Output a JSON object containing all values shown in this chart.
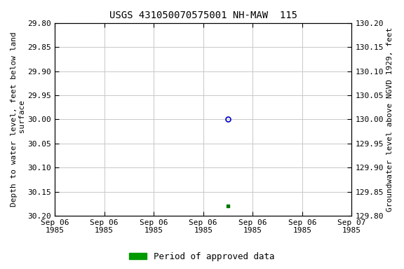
{
  "title": "USGS 431050070575001 NH-MAW  115",
  "ylabel_left": "Depth to water level, feet below land\n surface",
  "ylabel_right": "Groundwater level above NGVD 1929, feet",
  "ylim_left": [
    29.8,
    30.2
  ],
  "ylim_right_top": 130.2,
  "ylim_right_bottom": 129.8,
  "yticks_left": [
    29.8,
    29.85,
    29.9,
    29.95,
    30.0,
    30.05,
    30.1,
    30.15,
    30.2
  ],
  "yticks_right": [
    130.2,
    130.15,
    130.1,
    130.05,
    130.0,
    129.95,
    129.9,
    129.85,
    129.8
  ],
  "ytick_labels_right": [
    "130.20",
    "130.15",
    "130.10",
    "130.05",
    "130.00",
    "129.95",
    "129.90",
    "129.85",
    "129.80"
  ],
  "circle_point_x": 3.5,
  "circle_point_y": 30.0,
  "square_point_x": 3.5,
  "square_point_y": 30.18,
  "x_tick_labels": [
    "Sep 06\n1985",
    "Sep 06\n1985",
    "Sep 06\n1985",
    "Sep 06\n1985",
    "Sep 06\n1985",
    "Sep 06\n1985",
    "Sep 07\n1985"
  ],
  "xlim": [
    0,
    6
  ],
  "xtick_positions": [
    0,
    1,
    2,
    3,
    4,
    5,
    6
  ],
  "background_color": "#ffffff",
  "grid_color": "#c8c8c8",
  "circle_color": "#0000cc",
  "circle_face": "none",
  "square_color": "#007700",
  "legend_label": "Period of approved data",
  "legend_color": "#009900",
  "title_fontsize": 10,
  "axis_label_fontsize": 8,
  "tick_fontsize": 8,
  "legend_fontsize": 9
}
